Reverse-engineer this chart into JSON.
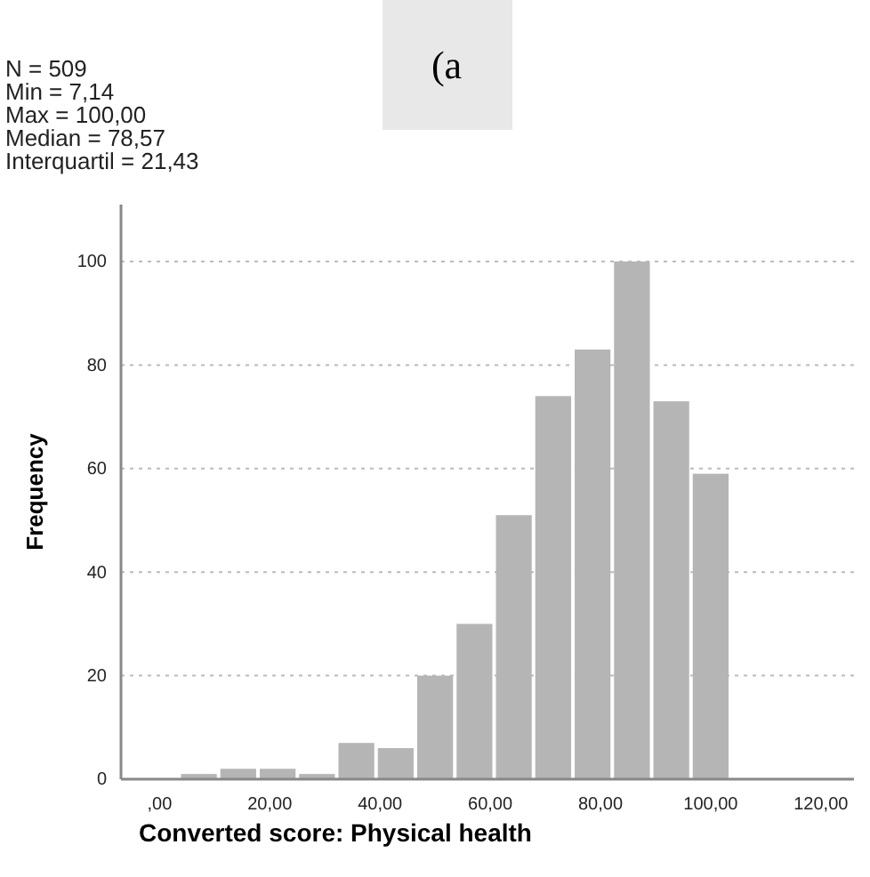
{
  "chart_data": {
    "type": "histogram",
    "title": "(a",
    "xlabel": "Converted score: Physical health",
    "ylabel": "Frequency",
    "annotations": [
      "N = 509",
      "Min = 7,14",
      "Max = 100,00",
      "Median = 78,57",
      "Interquartil = 21,43"
    ],
    "bins": [
      3.57,
      10.71,
      17.85,
      25.0,
      32.14,
      39.28,
      46.42,
      53.57,
      60.71,
      67.85,
      75.0,
      82.14,
      89.28,
      96.42,
      103.57
    ],
    "values": [
      1,
      2,
      2,
      1,
      7,
      6,
      20,
      30,
      51,
      74,
      83,
      100,
      73,
      59
    ],
    "color": "#b5b5b5",
    "xlim": [
      -7,
      126
    ],
    "ylim": [
      0,
      111
    ],
    "xticks": [
      {
        "value": 0,
        "label": ",00"
      },
      {
        "value": 20,
        "label": "20,00"
      },
      {
        "value": 40,
        "label": "40,00"
      },
      {
        "value": 60,
        "label": "60,00"
      },
      {
        "value": 80,
        "label": "80,00"
      },
      {
        "value": 100,
        "label": "100,00"
      },
      {
        "value": 120,
        "label": "120,00"
      }
    ],
    "yticks": [
      0,
      20,
      40,
      60,
      80,
      100
    ],
    "grid": "y"
  }
}
